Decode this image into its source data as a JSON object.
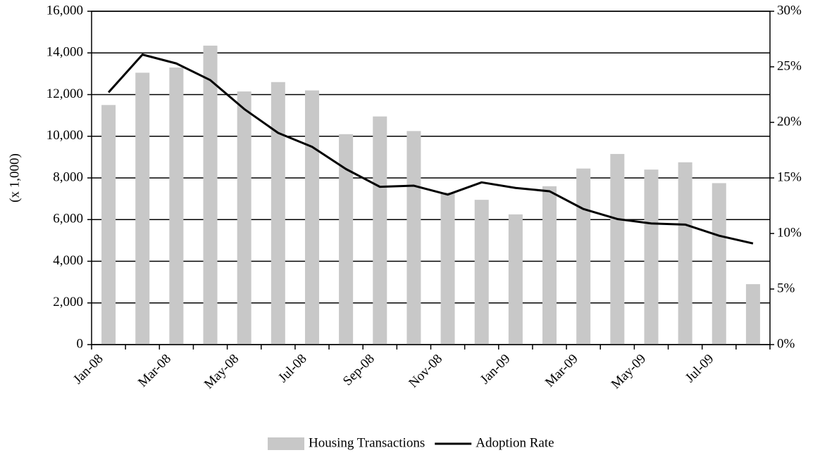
{
  "chart_data": {
    "type": "bar-line",
    "y_axis_label": "(x 1,000)",
    "categories": [
      "Jan-08",
      null,
      "Mar-08",
      null,
      "May-08",
      null,
      "Jul-08",
      null,
      "Sep-08",
      null,
      "Nov-08",
      null,
      "Jan-09",
      null,
      "Mar-09",
      null,
      "May-09",
      null,
      "Jul-09",
      null
    ],
    "series": [
      {
        "name": "Housing Transactions",
        "type": "bar",
        "color": "#c8c8c8",
        "values": [
          11500,
          13050,
          13300,
          14350,
          12150,
          12600,
          12200,
          10100,
          10950,
          10250,
          7300,
          6950,
          6250,
          7600,
          8450,
          9150,
          8400,
          8750,
          7750,
          2900
        ]
      },
      {
        "name": "Adoption Rate",
        "type": "line",
        "axis": "y2",
        "color": "#000000",
        "values": [
          22.7,
          26.1,
          25.3,
          23.8,
          21.2,
          19.05,
          17.8,
          15.8,
          14.2,
          14.3,
          13.5,
          14.6,
          14.1,
          13.8,
          12.2,
          11.3,
          10.9,
          10.8,
          9.8,
          9.1
        ]
      }
    ],
    "ylim": [
      0,
      16000
    ],
    "yticks": [
      {
        "value": 0,
        "label": "0"
      },
      {
        "value": 2000,
        "label": "2,000"
      },
      {
        "value": 4000,
        "label": "4,000"
      },
      {
        "value": 6000,
        "label": "6,000"
      },
      {
        "value": 8000,
        "label": "8,000"
      },
      {
        "value": 10000,
        "label": "10,000"
      },
      {
        "value": 12000,
        "label": "12,000"
      },
      {
        "value": 14000,
        "label": "14,000"
      },
      {
        "value": 16000,
        "label": "16,000"
      }
    ],
    "y2lim": [
      0,
      30
    ],
    "y2ticks": [
      {
        "value": 0,
        "label": "0%"
      },
      {
        "value": 5,
        "label": "5%"
      },
      {
        "value": 10,
        "label": "10%"
      },
      {
        "value": 15,
        "label": "15%"
      },
      {
        "value": 20,
        "label": "20%"
      },
      {
        "value": 25,
        "label": "25%"
      },
      {
        "value": 30,
        "label": "30%"
      }
    ],
    "grid": true,
    "legend": "bottom"
  }
}
